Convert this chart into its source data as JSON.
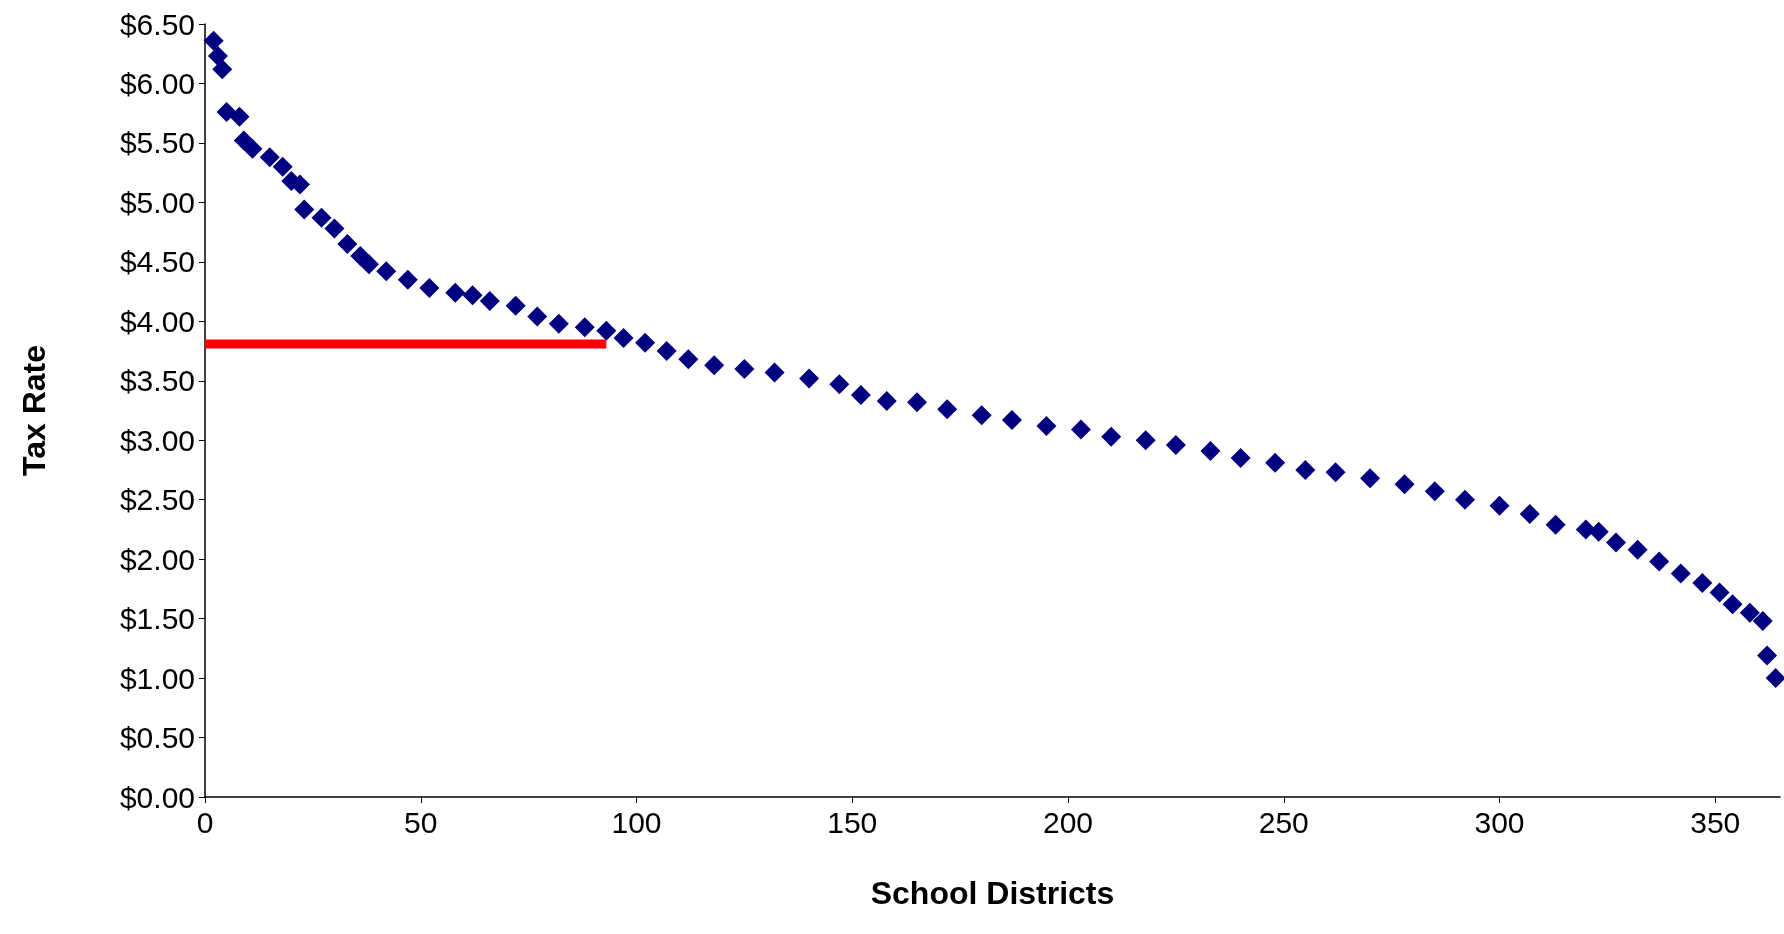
{
  "chart_data": {
    "type": "scatter",
    "xlabel": "School Districts",
    "ylabel": "Tax Rate",
    "xlim": [
      0,
      365
    ],
    "xticks": [
      0,
      50,
      100,
      150,
      200,
      250,
      300,
      350
    ],
    "ylim": [
      0,
      6.5
    ],
    "yticks": [
      {
        "value": 0,
        "label": "$0.00"
      },
      {
        "value": 0.5,
        "label": "$0.50"
      },
      {
        "value": 1,
        "label": "$1.00"
      },
      {
        "value": 1.5,
        "label": "$1.50"
      },
      {
        "value": 2,
        "label": "$2.00"
      },
      {
        "value": 2.5,
        "label": "$2.50"
      },
      {
        "value": 3,
        "label": "$3.00"
      },
      {
        "value": 3.5,
        "label": "$3.50"
      },
      {
        "value": 4,
        "label": "$4.00"
      },
      {
        "value": 4.5,
        "label": "$4.50"
      },
      {
        "value": 5,
        "label": "$5.00"
      },
      {
        "value": 5.5,
        "label": "$5.50"
      },
      {
        "value": 6,
        "label": "$6.00"
      },
      {
        "value": 6.5,
        "label": "$6.50"
      }
    ],
    "grid": false,
    "marker": "diamond",
    "series": [
      {
        "color": "#000080",
        "x": [
          2,
          3,
          4,
          5,
          8,
          9,
          11,
          15,
          18,
          20,
          22,
          23,
          27,
          30,
          33,
          36,
          38,
          42,
          47,
          52,
          58,
          62,
          66,
          72,
          77,
          82,
          88,
          93,
          97,
          102,
          107,
          112,
          118,
          125,
          132,
          140,
          147,
          152,
          158,
          165,
          172,
          180,
          187,
          195,
          203,
          210,
          218,
          225,
          233,
          240,
          248,
          255,
          262,
          270,
          278,
          285,
          292,
          300,
          307,
          313,
          320,
          323,
          327,
          332,
          337,
          342,
          347,
          351,
          354,
          358,
          361,
          362,
          364
        ],
        "values": [
          6.36,
          6.23,
          6.12,
          5.76,
          5.72,
          5.52,
          5.45,
          5.38,
          5.3,
          5.18,
          5.15,
          4.94,
          4.87,
          4.78,
          4.65,
          4.55,
          4.48,
          4.42,
          4.35,
          4.28,
          4.24,
          4.22,
          4.17,
          4.13,
          4.04,
          3.98,
          3.95,
          3.92,
          3.86,
          3.82,
          3.75,
          3.68,
          3.63,
          3.6,
          3.57,
          3.52,
          3.47,
          3.38,
          3.33,
          3.32,
          3.26,
          3.21,
          3.17,
          3.12,
          3.09,
          3.03,
          3,
          2.96,
          2.91,
          2.85,
          2.81,
          2.75,
          2.73,
          2.68,
          2.63,
          2.57,
          2.5,
          2.45,
          2.38,
          2.29,
          2.25,
          2.23,
          2.14,
          2.08,
          1.98,
          1.88,
          1.8,
          1.72,
          1.62,
          1.55,
          1.48,
          1.19,
          1
        ]
      },
      {
        "type": "line",
        "color": "#ff0000",
        "x": [
          0,
          93
        ],
        "values": [
          3.81,
          3.81
        ],
        "marker": "none"
      }
    ]
  }
}
